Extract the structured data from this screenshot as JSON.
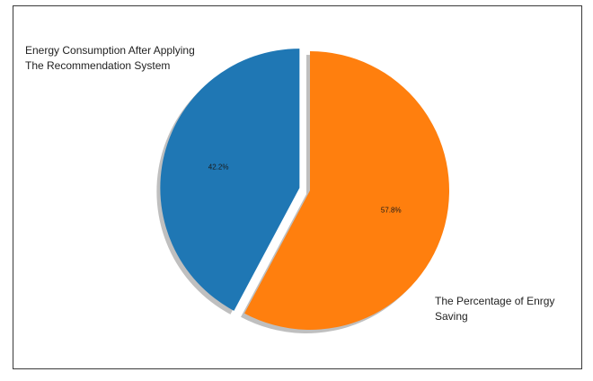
{
  "chart_data": {
    "type": "pie",
    "categories": [
      "Energy Consumption After Applying The Recommendation System",
      "The Percentage of Enrgy Saving"
    ],
    "values": [
      42.2,
      57.8
    ],
    "percent_labels": [
      "42.2%",
      "57.8%"
    ],
    "label_lines": [
      [
        "Energy Consumption After Applying",
        "The Recommendation System"
      ],
      [
        "The Percentage of Enrgy",
        "Saving"
      ]
    ],
    "colors": [
      "#1f77b4",
      "#ff7f0e"
    ],
    "exploded": [
      true,
      false
    ],
    "shadow": true,
    "start": "top",
    "direction": "clockwise, orange slice first",
    "title": "",
    "legend": "none"
  }
}
